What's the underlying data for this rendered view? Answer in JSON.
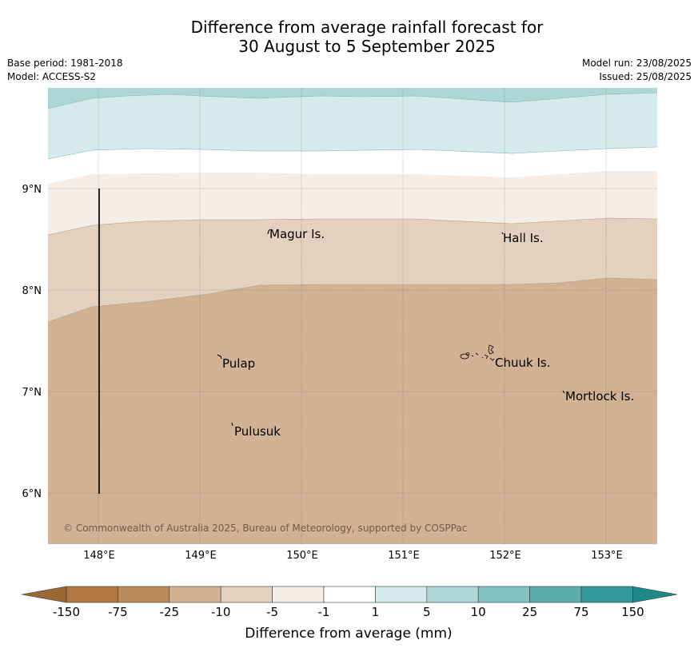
{
  "header": {
    "title_line1": "Difference from average rainfall forecast for",
    "title_line2": "30 August to 5 September 2025",
    "base_period": "Base period: 1981-2018",
    "model": "Model: ACCESS-S2",
    "model_run": "Model run: 23/08/2025",
    "issued": "Issued: 25/08/2025"
  },
  "map": {
    "lon_ticks": [
      "148°E",
      "149°E",
      "150°E",
      "151°E",
      "152°E",
      "153°E"
    ],
    "lat_ticks": [
      "9°N",
      "8°N",
      "7°N",
      "6°N"
    ],
    "places": {
      "magur": "Magur Is.",
      "hall": "Hall Is.",
      "pulap": "Pulap",
      "chuuk": "Chuuk Is.",
      "mortlock": "Mortlock Is.",
      "pulusuk": "Pulusuk"
    },
    "copyright": "© Commonwealth of Australia 2025, Bureau of Meteorology, supported by COSPPac",
    "colors": {
      "c_m75_m25": "#d2b294",
      "c_m25_m10": "#e3d0be",
      "c_m10_m5": "#f5ede7",
      "c_m1_1": "#ffffff",
      "c_1_5": "#d5eaea",
      "c_5_10": "#add7d7"
    }
  },
  "colorbar": {
    "ticks": [
      "-150",
      "-75",
      "-25",
      "-10",
      "-5",
      "-1",
      "1",
      "5",
      "10",
      "25",
      "75",
      "150"
    ],
    "colors": [
      "#b07741",
      "#bc8c5e",
      "#d2b294",
      "#e3d0be",
      "#f5ede7",
      "#ffffff",
      "#d5eaea",
      "#add7d7",
      "#84c3c1",
      "#5aafad",
      "#33999a"
    ],
    "under_color": "#9b6832",
    "over_color": "#1f8788",
    "label": "Difference from average (mm)"
  }
}
